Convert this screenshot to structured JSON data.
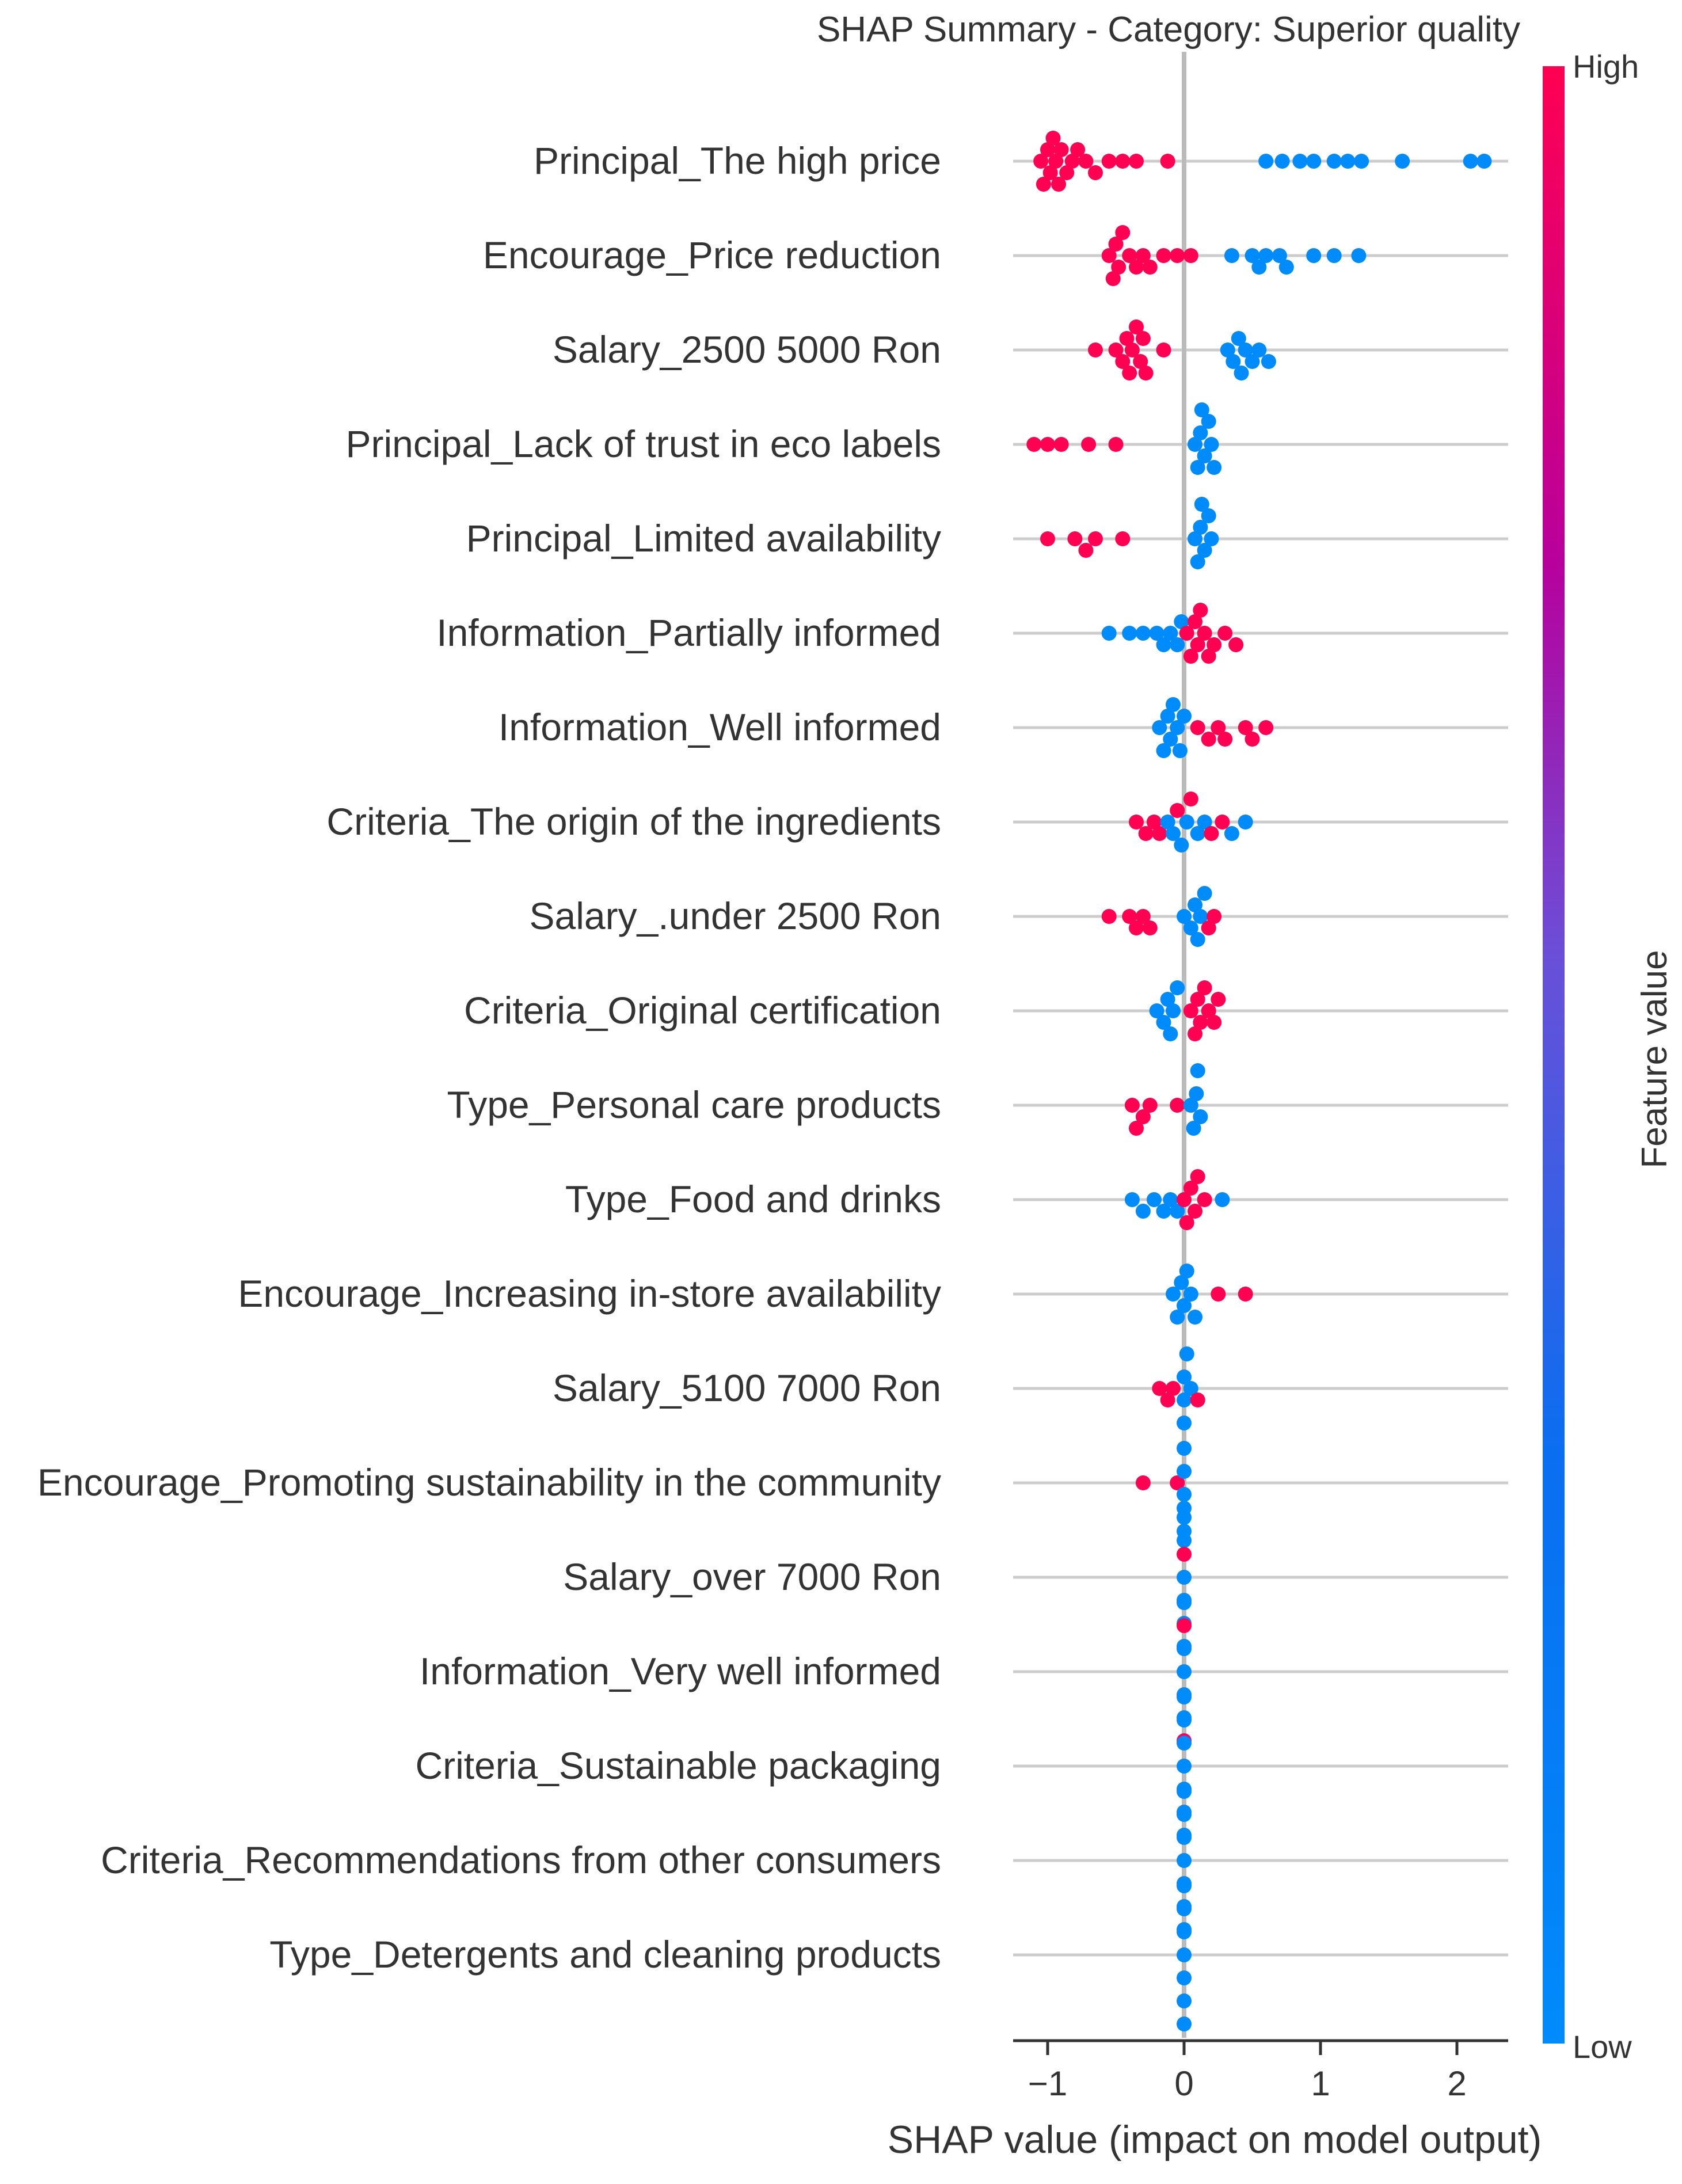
{
  "chart_data": {
    "type": "scatter",
    "subtype": "shap-beeswarm",
    "title": "SHAP Summary - Category: Superior quality",
    "xlabel": "SHAP value (impact on model output)",
    "ylabel": "",
    "xlim": [
      -1.25,
      2.35
    ],
    "x_ticks": [
      -1,
      0,
      1,
      2
    ],
    "x_tick_labels": [
      "−1",
      "0",
      "1",
      "2"
    ],
    "grid": true,
    "colorbar": {
      "label": "Feature value",
      "high_label": "High",
      "low_label": "Low",
      "high_color": "#ff0052",
      "low_color": "#008bfb"
    },
    "features": [
      {
        "name": "Principal_The high price",
        "points": [
          [
            -1.05,
            1
          ],
          [
            -1.03,
            1
          ],
          [
            -1.0,
            1
          ],
          [
            -0.98,
            1
          ],
          [
            -0.96,
            1
          ],
          [
            -0.94,
            1
          ],
          [
            -0.92,
            1
          ],
          [
            -0.9,
            1
          ],
          [
            -0.86,
            1
          ],
          [
            -0.82,
            1
          ],
          [
            -0.78,
            1
          ],
          [
            -0.72,
            1
          ],
          [
            -0.65,
            1
          ],
          [
            -0.55,
            1
          ],
          [
            -0.45,
            1
          ],
          [
            -0.35,
            1
          ],
          [
            -0.12,
            1
          ],
          [
            0.6,
            0
          ],
          [
            0.72,
            0
          ],
          [
            0.85,
            0
          ],
          [
            0.95,
            0
          ],
          [
            1.1,
            0
          ],
          [
            1.2,
            0
          ],
          [
            1.3,
            0
          ],
          [
            1.6,
            0
          ],
          [
            2.1,
            0
          ],
          [
            2.2,
            0
          ]
        ]
      },
      {
        "name": "Encourage_Price reduction",
        "points": [
          [
            -0.55,
            1
          ],
          [
            -0.52,
            1
          ],
          [
            -0.5,
            1
          ],
          [
            -0.48,
            1
          ],
          [
            -0.45,
            1
          ],
          [
            -0.4,
            1
          ],
          [
            -0.35,
            1
          ],
          [
            -0.3,
            1
          ],
          [
            -0.25,
            1
          ],
          [
            -0.15,
            1
          ],
          [
            -0.05,
            1
          ],
          [
            0.05,
            1
          ],
          [
            0.35,
            0
          ],
          [
            0.5,
            0
          ],
          [
            0.55,
            0
          ],
          [
            0.6,
            0
          ],
          [
            0.7,
            0
          ],
          [
            0.75,
            0
          ],
          [
            0.95,
            0
          ],
          [
            1.1,
            0
          ],
          [
            1.28,
            0
          ]
        ]
      },
      {
        "name": "Salary_2500  5000 Ron",
        "points": [
          [
            -0.65,
            1
          ],
          [
            -0.5,
            1
          ],
          [
            -0.45,
            1
          ],
          [
            -0.42,
            1
          ],
          [
            -0.4,
            1
          ],
          [
            -0.38,
            1
          ],
          [
            -0.35,
            1
          ],
          [
            -0.32,
            1
          ],
          [
            -0.3,
            1
          ],
          [
            -0.28,
            1
          ],
          [
            -0.15,
            1
          ],
          [
            0.32,
            0
          ],
          [
            0.36,
            0
          ],
          [
            0.4,
            0
          ],
          [
            0.42,
            0
          ],
          [
            0.45,
            0
          ],
          [
            0.5,
            0
          ],
          [
            0.55,
            0
          ],
          [
            0.62,
            0
          ]
        ]
      },
      {
        "name": "Principal_Lack of trust in eco labels",
        "points": [
          [
            -1.1,
            1
          ],
          [
            -1.0,
            1
          ],
          [
            -0.9,
            1
          ],
          [
            -0.7,
            1
          ],
          [
            -0.5,
            1
          ],
          [
            0.08,
            0
          ],
          [
            0.1,
            0
          ],
          [
            0.12,
            0
          ],
          [
            0.13,
            0
          ],
          [
            0.15,
            0
          ],
          [
            0.18,
            0
          ],
          [
            0.2,
            0
          ],
          [
            0.22,
            0
          ]
        ]
      },
      {
        "name": "Principal_Limited availability",
        "points": [
          [
            -1.0,
            1
          ],
          [
            -0.8,
            1
          ],
          [
            -0.72,
            1
          ],
          [
            -0.65,
            1
          ],
          [
            -0.45,
            1
          ],
          [
            0.08,
            0
          ],
          [
            0.1,
            0
          ],
          [
            0.12,
            0
          ],
          [
            0.13,
            0
          ],
          [
            0.15,
            0
          ],
          [
            0.18,
            0
          ],
          [
            0.2,
            0
          ]
        ]
      },
      {
        "name": "Information_Partially informed",
        "points": [
          [
            -0.55,
            0
          ],
          [
            -0.4,
            0
          ],
          [
            -0.3,
            0
          ],
          [
            -0.2,
            0
          ],
          [
            -0.15,
            0
          ],
          [
            -0.1,
            0
          ],
          [
            -0.05,
            0
          ],
          [
            -0.02,
            0
          ],
          [
            0.02,
            1
          ],
          [
            0.05,
            1
          ],
          [
            0.08,
            1
          ],
          [
            0.1,
            1
          ],
          [
            0.12,
            1
          ],
          [
            0.15,
            1
          ],
          [
            0.18,
            1
          ],
          [
            0.22,
            1
          ],
          [
            0.3,
            1
          ],
          [
            0.38,
            1
          ]
        ]
      },
      {
        "name": "Information_Well informed",
        "points": [
          [
            -0.18,
            0
          ],
          [
            -0.15,
            0
          ],
          [
            -0.12,
            0
          ],
          [
            -0.1,
            0
          ],
          [
            -0.08,
            0
          ],
          [
            -0.05,
            0
          ],
          [
            -0.03,
            0
          ],
          [
            0.0,
            0
          ],
          [
            0.1,
            1
          ],
          [
            0.18,
            1
          ],
          [
            0.25,
            1
          ],
          [
            0.3,
            1
          ],
          [
            0.45,
            1
          ],
          [
            0.5,
            1
          ],
          [
            0.6,
            1
          ]
        ]
      },
      {
        "name": "Criteria_The origin of the ingredients",
        "points": [
          [
            -0.35,
            1
          ],
          [
            -0.28,
            1
          ],
          [
            -0.22,
            1
          ],
          [
            -0.18,
            1
          ],
          [
            -0.12,
            0
          ],
          [
            -0.08,
            0
          ],
          [
            -0.05,
            1
          ],
          [
            -0.02,
            0
          ],
          [
            0.02,
            0
          ],
          [
            0.05,
            1
          ],
          [
            0.1,
            0
          ],
          [
            0.15,
            0
          ],
          [
            0.2,
            1
          ],
          [
            0.28,
            1
          ],
          [
            0.35,
            0
          ],
          [
            0.45,
            0
          ]
        ]
      },
      {
        "name": "Salary_.under  2500 Ron",
        "points": [
          [
            -0.55,
            1
          ],
          [
            -0.4,
            1
          ],
          [
            -0.35,
            1
          ],
          [
            -0.3,
            1
          ],
          [
            -0.25,
            1
          ],
          [
            0.0,
            0
          ],
          [
            0.05,
            0
          ],
          [
            0.08,
            0
          ],
          [
            0.1,
            0
          ],
          [
            0.12,
            0
          ],
          [
            0.15,
            0
          ],
          [
            0.18,
            1
          ],
          [
            0.22,
            1
          ]
        ]
      },
      {
        "name": "Criteria_Original certification",
        "points": [
          [
            -0.2,
            0
          ],
          [
            -0.15,
            0
          ],
          [
            -0.12,
            0
          ],
          [
            -0.1,
            0
          ],
          [
            -0.08,
            0
          ],
          [
            -0.05,
            0
          ],
          [
            0.05,
            1
          ],
          [
            0.08,
            1
          ],
          [
            0.1,
            1
          ],
          [
            0.12,
            1
          ],
          [
            0.15,
            1
          ],
          [
            0.18,
            1
          ],
          [
            0.22,
            1
          ],
          [
            0.25,
            1
          ]
        ]
      },
      {
        "name": "Type_Personal care products",
        "points": [
          [
            -0.38,
            1
          ],
          [
            -0.35,
            1
          ],
          [
            -0.3,
            1
          ],
          [
            -0.25,
            1
          ],
          [
            -0.05,
            1
          ],
          [
            0.05,
            0
          ],
          [
            0.07,
            0
          ],
          [
            0.09,
            0
          ],
          [
            0.1,
            0
          ],
          [
            0.12,
            0
          ]
        ]
      },
      {
        "name": "Type_Food and drinks",
        "points": [
          [
            -0.38,
            0
          ],
          [
            -0.3,
            0
          ],
          [
            -0.22,
            0
          ],
          [
            -0.15,
            0
          ],
          [
            -0.1,
            0
          ],
          [
            -0.05,
            0
          ],
          [
            0.0,
            1
          ],
          [
            0.02,
            1
          ],
          [
            0.05,
            1
          ],
          [
            0.08,
            1
          ],
          [
            0.1,
            1
          ],
          [
            0.15,
            1
          ],
          [
            0.28,
            0
          ]
        ]
      },
      {
        "name": "Encourage_Increasing in-store availability",
        "points": [
          [
            -0.08,
            0
          ],
          [
            -0.05,
            0
          ],
          [
            -0.02,
            0
          ],
          [
            0.0,
            0
          ],
          [
            0.02,
            0
          ],
          [
            0.05,
            0
          ],
          [
            0.08,
            0
          ],
          [
            0.25,
            1
          ],
          [
            0.45,
            1
          ]
        ]
      },
      {
        "name": "Salary_5100  7000 Ron",
        "points": [
          [
            -0.18,
            1
          ],
          [
            -0.12,
            1
          ],
          [
            -0.08,
            1
          ],
          [
            0.0,
            0
          ],
          [
            0.0,
            0
          ],
          [
            0.0,
            0
          ],
          [
            0.02,
            0
          ],
          [
            0.05,
            0
          ],
          [
            0.1,
            1
          ]
        ]
      },
      {
        "name": "Encourage_Promoting sustainability in the community",
        "points": [
          [
            -0.3,
            1
          ],
          [
            -0.05,
            1
          ],
          [
            0.0,
            0
          ],
          [
            0.0,
            0
          ],
          [
            0.0,
            0
          ],
          [
            0.0,
            0
          ],
          [
            0.0,
            0
          ]
        ]
      },
      {
        "name": "Salary_over  7000 Ron",
        "points": [
          [
            0.0,
            0
          ],
          [
            0.0,
            0
          ],
          [
            0.0,
            1
          ],
          [
            0.0,
            0
          ],
          [
            0.0,
            0
          ],
          [
            0.0,
            0
          ],
          [
            0.0,
            0
          ]
        ]
      },
      {
        "name": "Information_Very well informed",
        "points": [
          [
            0.0,
            0
          ],
          [
            0.0,
            0
          ],
          [
            0.0,
            0
          ],
          [
            0.0,
            0
          ],
          [
            0.0,
            1
          ],
          [
            0.0,
            1
          ],
          [
            0.0,
            0
          ]
        ]
      },
      {
        "name": "Criteria_Sustainable packaging",
        "points": [
          [
            0.0,
            0
          ],
          [
            0.0,
            0
          ],
          [
            0.0,
            0
          ],
          [
            0.0,
            0
          ],
          [
            0.0,
            0
          ],
          [
            0.0,
            0
          ],
          [
            0.0,
            0
          ]
        ]
      },
      {
        "name": "Criteria_Recommendations from other consumers",
        "points": [
          [
            0.0,
            0
          ],
          [
            0.0,
            0
          ],
          [
            0.0,
            0
          ],
          [
            0.0,
            0
          ],
          [
            0.0,
            0
          ],
          [
            0.0,
            0
          ],
          [
            0.0,
            0
          ]
        ]
      },
      {
        "name": "Type_Detergents and cleaning products",
        "points": [
          [
            0.0,
            0
          ],
          [
            0.0,
            0
          ],
          [
            0.0,
            0
          ],
          [
            0.0,
            0
          ],
          [
            0.0,
            0
          ],
          [
            0.0,
            0
          ],
          [
            0.0,
            0
          ]
        ]
      }
    ]
  }
}
